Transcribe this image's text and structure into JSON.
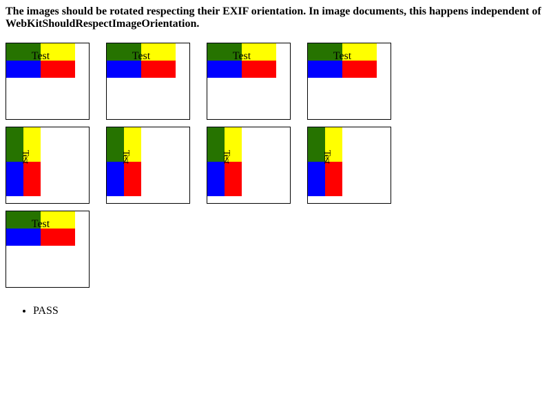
{
  "heading": "The images should be rotated respecting their EXIF orientation. In image documents, this happens independent of WebKitShouldRespectImageOrientation.",
  "colors": {
    "top_left": "#267300",
    "top_right": "#ffff00",
    "bottom_left": "#0000ff",
    "bottom_right": "#ff0000"
  },
  "rows": [
    [
      {
        "label": "Test",
        "orientation": "landscape"
      },
      {
        "label": "Test",
        "orientation": "landscape"
      },
      {
        "label": "Test",
        "orientation": "landscape"
      },
      {
        "label": "Test",
        "orientation": "landscape"
      }
    ],
    [
      {
        "label": "Test",
        "orientation": "portrait"
      },
      {
        "label": "Test",
        "orientation": "portrait"
      },
      {
        "label": "Test",
        "orientation": "portrait"
      },
      {
        "label": "Test",
        "orientation": "portrait"
      }
    ],
    [
      {
        "label": "Test",
        "orientation": "landscape"
      }
    ]
  ],
  "results": [
    "PASS"
  ]
}
